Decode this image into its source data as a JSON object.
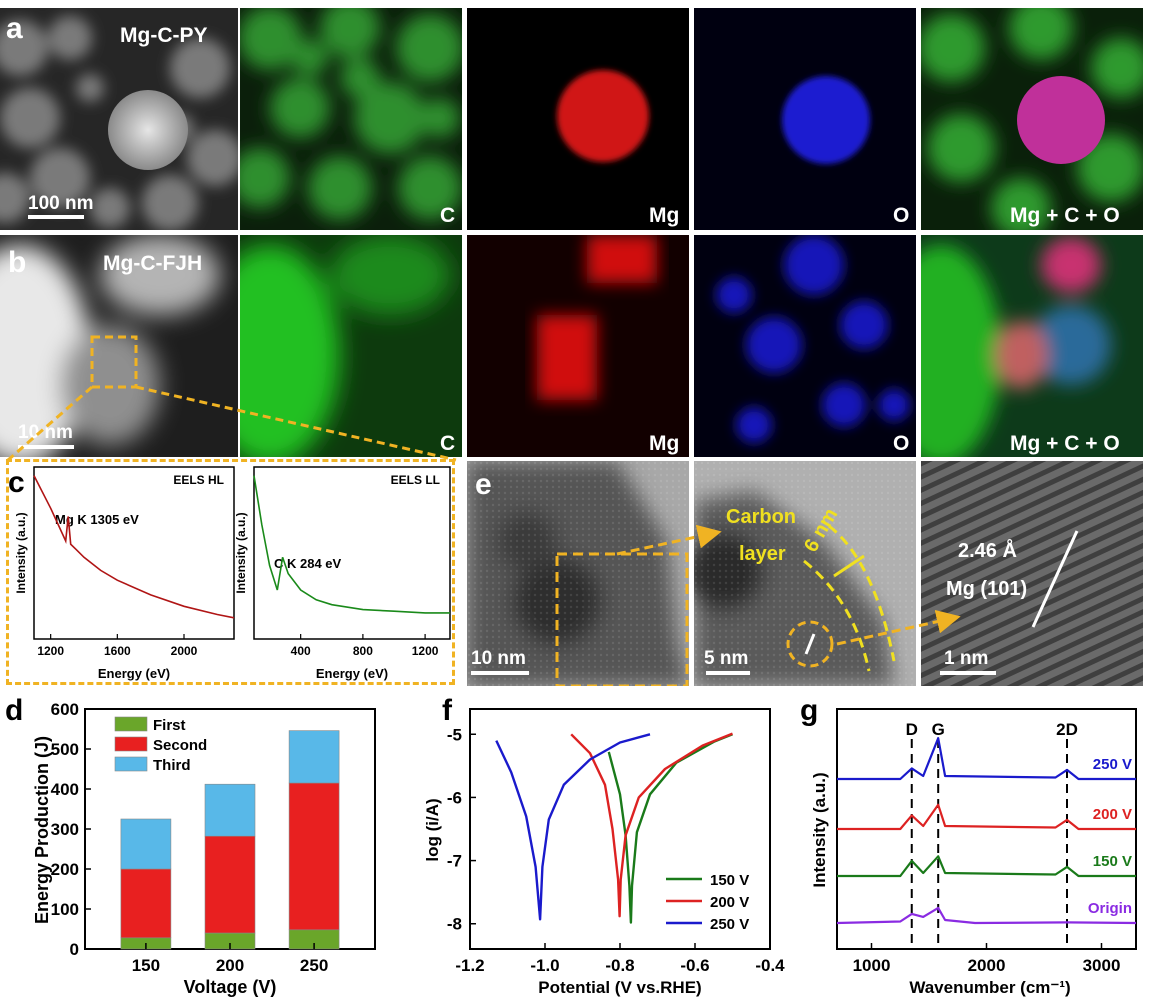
{
  "panel_letters": {
    "a": "a",
    "b": "b",
    "c": "c",
    "d": "d",
    "e": "e",
    "f": "f",
    "g": "g"
  },
  "row_a": {
    "sample_label": "Mg-C-PY",
    "scale_bar": "100 nm",
    "map_labels": {
      "carbon": "C",
      "magnesium": "Mg",
      "oxygen": "O",
      "overlay": "Mg + C + O"
    }
  },
  "row_b": {
    "sample_label": "Mg-C-FJH",
    "scale_bar": "10 nm",
    "map_labels": {
      "carbon": "C",
      "magnesium": "Mg",
      "oxygen": "O",
      "overlay": "Mg + C + O"
    }
  },
  "row_e": {
    "scale_bars": [
      "10 nm",
      "5 nm",
      "1 nm"
    ],
    "carbon_label_1": "Carbon",
    "carbon_label_2": "layer",
    "thickness": "6 nm",
    "d_spacing": "2.46 Å",
    "plane": "Mg (101)"
  },
  "colors": {
    "accent_orange": "#f0b323",
    "eels_hl": "#b01515",
    "eels_ll": "#1a8a1a",
    "first": "#6aa62a",
    "second": "#e82020",
    "third": "#58b8e8",
    "v150": "#1a7a1a",
    "v200": "#dd2222",
    "v250": "#1a1acc",
    "origin": "#8a2be2"
  },
  "chart_data": [
    {
      "id": "c-left",
      "type": "line",
      "title": "EELS HL",
      "xlabel": "Energy (eV)",
      "ylabel": "Intensity (a.u.)",
      "xticks": [
        1200,
        1600,
        2000
      ],
      "xlim": [
        1100,
        2300
      ],
      "annotation": "Mg K 1305 eV",
      "series": [
        {
          "values": [
            [
              1100,
              1.0
            ],
            [
              1200,
              0.8
            ],
            [
              1290,
              0.6
            ],
            [
              1305,
              0.75
            ],
            [
              1320,
              0.58
            ],
            [
              1350,
              0.55
            ],
            [
              1400,
              0.5
            ],
            [
              1500,
              0.42
            ],
            [
              1600,
              0.36
            ],
            [
              1800,
              0.27
            ],
            [
              2000,
              0.2
            ],
            [
              2200,
              0.15
            ],
            [
              2300,
              0.13
            ]
          ]
        }
      ]
    },
    {
      "id": "c-right",
      "type": "line",
      "title": "EELS LL",
      "xlabel": "Energy (eV)",
      "ylabel": "Intensity (a.u.)",
      "xticks": [
        400,
        800,
        1200
      ],
      "xlim": [
        100,
        1360
      ],
      "annotation": "C K 284 eV",
      "series": [
        {
          "values": [
            [
              100,
              1.0
            ],
            [
              150,
              0.7
            ],
            [
              200,
              0.45
            ],
            [
              250,
              0.3
            ],
            [
              284,
              0.5
            ],
            [
              320,
              0.4
            ],
            [
              400,
              0.3
            ],
            [
              500,
              0.24
            ],
            [
              600,
              0.21
            ],
            [
              800,
              0.18
            ],
            [
              1000,
              0.17
            ],
            [
              1200,
              0.16
            ],
            [
              1360,
              0.16
            ]
          ]
        }
      ]
    },
    {
      "id": "d",
      "type": "bar",
      "stacked": true,
      "xlabel": "Voltage (V)",
      "ylabel": "Energy Production (J)",
      "categories": [
        "150",
        "200",
        "250"
      ],
      "yticks": [
        0,
        100,
        200,
        300,
        400,
        500,
        600
      ],
      "ylim": [
        0,
        600
      ],
      "legend": "top-left",
      "series": [
        {
          "name": "First",
          "values": [
            28,
            40,
            48
          ]
        },
        {
          "name": "Second",
          "values": [
            172,
            242,
            367
          ]
        },
        {
          "name": "Third",
          "values": [
            125,
            130,
            131
          ]
        }
      ]
    },
    {
      "id": "f",
      "type": "line",
      "xlabel": "Potential (V vs.RHE)",
      "ylabel": "log (i/A)",
      "xticks": [
        "-1.2",
        "-1.0",
        "-0.8",
        "-0.6",
        "-0.4"
      ],
      "xlim": [
        -1.2,
        -0.4
      ],
      "yticks": [
        "-5",
        "-6",
        "-7",
        "-8"
      ],
      "ylim": [
        -8.4,
        -4.6
      ],
      "legend": "bottom-right",
      "series": [
        {
          "name": "150 V",
          "values": [
            [
              -0.83,
              -5.28
            ],
            [
              -0.8,
              -5.95
            ],
            [
              -0.785,
              -6.6
            ],
            [
              -0.775,
              -7.4
            ],
            [
              -0.771,
              -7.98
            ],
            [
              -0.768,
              -7.4
            ],
            [
              -0.755,
              -6.55
            ],
            [
              -0.72,
              -5.95
            ],
            [
              -0.65,
              -5.45
            ],
            [
              -0.55,
              -5.12
            ],
            [
              -0.5,
              -5.0
            ]
          ]
        },
        {
          "name": "200 V",
          "values": [
            [
              -0.93,
              -5.0
            ],
            [
              -0.88,
              -5.3
            ],
            [
              -0.84,
              -5.8
            ],
            [
              -0.82,
              -6.5
            ],
            [
              -0.805,
              -7.3
            ],
            [
              -0.801,
              -7.88
            ],
            [
              -0.798,
              -7.3
            ],
            [
              -0.785,
              -6.6
            ],
            [
              -0.75,
              -6.0
            ],
            [
              -0.68,
              -5.55
            ],
            [
              -0.58,
              -5.18
            ],
            [
              -0.5,
              -4.99
            ]
          ]
        },
        {
          "name": "250 V",
          "values": [
            [
              -1.13,
              -5.1
            ],
            [
              -1.09,
              -5.6
            ],
            [
              -1.05,
              -6.3
            ],
            [
              -1.025,
              -7.1
            ],
            [
              -1.013,
              -7.93
            ],
            [
              -1.007,
              -7.1
            ],
            [
              -0.99,
              -6.35
            ],
            [
              -0.95,
              -5.8
            ],
            [
              -0.88,
              -5.4
            ],
            [
              -0.8,
              -5.13
            ],
            [
              -0.72,
              -5.0
            ]
          ]
        }
      ]
    },
    {
      "id": "g",
      "type": "line",
      "xlabel": "Wavenumber (cm⁻¹)",
      "ylabel": "Intensity (a.u.)",
      "xticks": [
        1000,
        2000,
        3000
      ],
      "xlim": [
        700,
        3300
      ],
      "peaks": [
        "D",
        "G",
        "2D"
      ],
      "peak_positions": [
        1350,
        1580,
        2700
      ],
      "series": [
        {
          "name": "250 V",
          "values": [
            [
              700,
              0.0
            ],
            [
              1250,
              0.0
            ],
            [
              1350,
              0.35
            ],
            [
              1450,
              0.1
            ],
            [
              1580,
              1.35
            ],
            [
              1640,
              0.1
            ],
            [
              2600,
              0.05
            ],
            [
              2700,
              0.3
            ],
            [
              2800,
              0.0
            ],
            [
              3300,
              0.0
            ]
          ]
        },
        {
          "name": "200 V",
          "values": [
            [
              700,
              0.0
            ],
            [
              1250,
              0.0
            ],
            [
              1350,
              0.45
            ],
            [
              1450,
              0.1
            ],
            [
              1580,
              0.8
            ],
            [
              1640,
              0.1
            ],
            [
              2600,
              0.05
            ],
            [
              2700,
              0.3
            ],
            [
              2800,
              0.0
            ],
            [
              3300,
              0.0
            ]
          ]
        },
        {
          "name": "150 V",
          "values": [
            [
              700,
              0.0
            ],
            [
              1250,
              0.0
            ],
            [
              1350,
              0.5
            ],
            [
              1450,
              0.1
            ],
            [
              1580,
              0.65
            ],
            [
              1640,
              0.1
            ],
            [
              2600,
              0.05
            ],
            [
              2700,
              0.3
            ],
            [
              2800,
              0.0
            ],
            [
              3300,
              0.0
            ]
          ]
        },
        {
          "name": "Origin",
          "values": [
            [
              700,
              0.0
            ],
            [
              1250,
              0.05
            ],
            [
              1350,
              0.3
            ],
            [
              1450,
              0.2
            ],
            [
              1580,
              0.5
            ],
            [
              1640,
              0.1
            ],
            [
              1900,
              0.0
            ],
            [
              2700,
              0.02
            ],
            [
              3300,
              0.0
            ]
          ]
        }
      ]
    }
  ]
}
